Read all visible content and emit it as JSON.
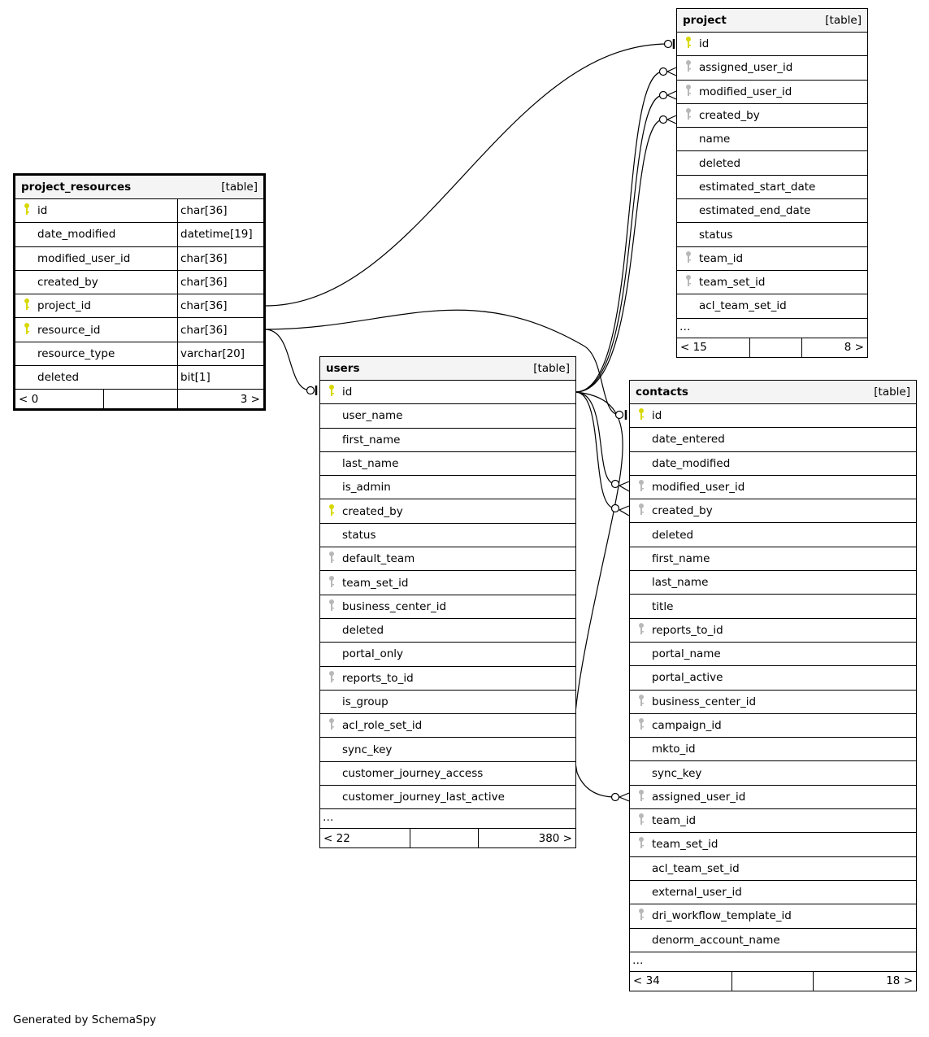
{
  "colors": {
    "primary_key": "#d8d800",
    "foreign_key": "#b8b8b8",
    "header_bg": "#f4f4f4"
  },
  "tables": [
    {
      "id": "project_resources",
      "name": "project_resources",
      "kind": "[table]",
      "focus": true,
      "columns": [
        {
          "name": "id",
          "type": "char[36]",
          "key": "primary"
        },
        {
          "name": "date_modified",
          "type": "datetime[19]",
          "key": ""
        },
        {
          "name": "modified_user_id",
          "type": "char[36]",
          "key": ""
        },
        {
          "name": "created_by",
          "type": "char[36]",
          "key": ""
        },
        {
          "name": "project_id",
          "type": "char[36]",
          "key": "primary"
        },
        {
          "name": "resource_id",
          "type": "char[36]",
          "key": "primary"
        },
        {
          "name": "resource_type",
          "type": "varchar[20]",
          "key": ""
        },
        {
          "name": "deleted",
          "type": "bit[1]",
          "key": ""
        }
      ],
      "more": false,
      "footer": {
        "parents": "< 0",
        "middle": "",
        "children": "3 >"
      }
    },
    {
      "id": "users",
      "name": "users",
      "kind": "[table]",
      "focus": false,
      "columns": [
        {
          "name": "id",
          "key": "primary"
        },
        {
          "name": "user_name",
          "key": ""
        },
        {
          "name": "first_name",
          "key": ""
        },
        {
          "name": "last_name",
          "key": ""
        },
        {
          "name": "is_admin",
          "key": ""
        },
        {
          "name": "created_by",
          "key": "primary"
        },
        {
          "name": "status",
          "key": ""
        },
        {
          "name": "default_team",
          "key": "foreign"
        },
        {
          "name": "team_set_id",
          "key": "foreign"
        },
        {
          "name": "business_center_id",
          "key": "foreign"
        },
        {
          "name": "deleted",
          "key": ""
        },
        {
          "name": "portal_only",
          "key": ""
        },
        {
          "name": "reports_to_id",
          "key": "foreign"
        },
        {
          "name": "is_group",
          "key": ""
        },
        {
          "name": "acl_role_set_id",
          "key": "foreign"
        },
        {
          "name": "sync_key",
          "key": ""
        },
        {
          "name": "customer_journey_access",
          "key": ""
        },
        {
          "name": "customer_journey_last_active",
          "key": ""
        }
      ],
      "more": "…",
      "footer": {
        "parents": "< 22",
        "middle": "",
        "children": "380 >"
      }
    },
    {
      "id": "project",
      "name": "project",
      "kind": "[table]",
      "focus": false,
      "columns": [
        {
          "name": "id",
          "key": "primary"
        },
        {
          "name": "assigned_user_id",
          "key": "foreign"
        },
        {
          "name": "modified_user_id",
          "key": "foreign"
        },
        {
          "name": "created_by",
          "key": "foreign"
        },
        {
          "name": "name",
          "key": ""
        },
        {
          "name": "deleted",
          "key": ""
        },
        {
          "name": "estimated_start_date",
          "key": ""
        },
        {
          "name": "estimated_end_date",
          "key": ""
        },
        {
          "name": "status",
          "key": ""
        },
        {
          "name": "team_id",
          "key": "foreign"
        },
        {
          "name": "team_set_id",
          "key": "foreign"
        },
        {
          "name": "acl_team_set_id",
          "key": ""
        }
      ],
      "more": "…",
      "footer": {
        "parents": "< 15",
        "middle": "",
        "children": "8 >"
      }
    },
    {
      "id": "contacts",
      "name": "contacts",
      "kind": "[table]",
      "focus": false,
      "columns": [
        {
          "name": "id",
          "key": "primary"
        },
        {
          "name": "date_entered",
          "key": ""
        },
        {
          "name": "date_modified",
          "key": ""
        },
        {
          "name": "modified_user_id",
          "key": "foreign"
        },
        {
          "name": "created_by",
          "key": "foreign"
        },
        {
          "name": "deleted",
          "key": ""
        },
        {
          "name": "first_name",
          "key": ""
        },
        {
          "name": "last_name",
          "key": ""
        },
        {
          "name": "title",
          "key": ""
        },
        {
          "name": "reports_to_id",
          "key": "foreign"
        },
        {
          "name": "portal_name",
          "key": ""
        },
        {
          "name": "portal_active",
          "key": ""
        },
        {
          "name": "business_center_id",
          "key": "foreign"
        },
        {
          "name": "campaign_id",
          "key": "foreign"
        },
        {
          "name": "mkto_id",
          "key": ""
        },
        {
          "name": "sync_key",
          "key": ""
        },
        {
          "name": "assigned_user_id",
          "key": "foreign"
        },
        {
          "name": "team_id",
          "key": "foreign"
        },
        {
          "name": "team_set_id",
          "key": "foreign"
        },
        {
          "name": "acl_team_set_id",
          "key": ""
        },
        {
          "name": "external_user_id",
          "key": ""
        },
        {
          "name": "dri_workflow_template_id",
          "key": "foreign"
        },
        {
          "name": "denorm_account_name",
          "key": ""
        }
      ],
      "more": "…",
      "footer": {
        "parents": "< 34",
        "middle": "",
        "children": "18 >"
      }
    }
  ],
  "relationships": [
    {
      "from": "project_resources.project_id",
      "to": "project.id"
    },
    {
      "from": "project_resources.resource_id",
      "to": "users.id"
    },
    {
      "from": "project_resources.resource_id",
      "to": "contacts.id"
    },
    {
      "from": "users.id",
      "to": "project.assigned_user_id"
    },
    {
      "from": "users.id",
      "to": "project.modified_user_id"
    },
    {
      "from": "users.id",
      "to": "project.created_by"
    },
    {
      "from": "users.id",
      "to": "contacts.modified_user_id"
    },
    {
      "from": "users.id",
      "to": "contacts.created_by"
    },
    {
      "from": "users.id",
      "to": "contacts.assigned_user_id"
    }
  ],
  "footer_text": "Generated by SchemaSpy"
}
